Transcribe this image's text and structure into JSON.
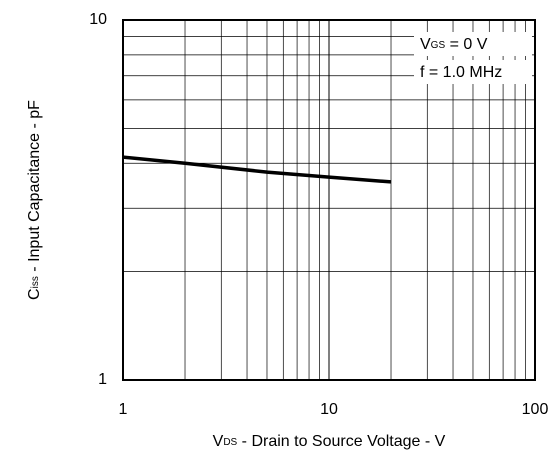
{
  "chart_data": {
    "type": "line",
    "xlabel": {
      "main": "V",
      "sub": "DS",
      "rest": " - Drain to Source Voltage - V"
    },
    "ylabel": {
      "main": "C",
      "sub": "iss",
      "rest": " - Input Capacitance - pF"
    },
    "annotations": [
      {
        "main": "V",
        "sub": "GS",
        "rest": " = 0 V"
      },
      {
        "text": "f = 1.0 MHz"
      }
    ],
    "x": [
      1,
      2,
      5,
      10,
      20
    ],
    "series": [
      {
        "color": "#000000",
        "values": [
          4.16,
          4.0,
          3.78,
          3.66,
          3.55
        ]
      }
    ],
    "xlim": [
      1,
      100
    ],
    "ylim": [
      1,
      10
    ],
    "xticks": [
      1,
      10,
      100
    ],
    "yticks": [
      1,
      10
    ],
    "xscale": "log",
    "yscale": "log",
    "grid": true
  }
}
